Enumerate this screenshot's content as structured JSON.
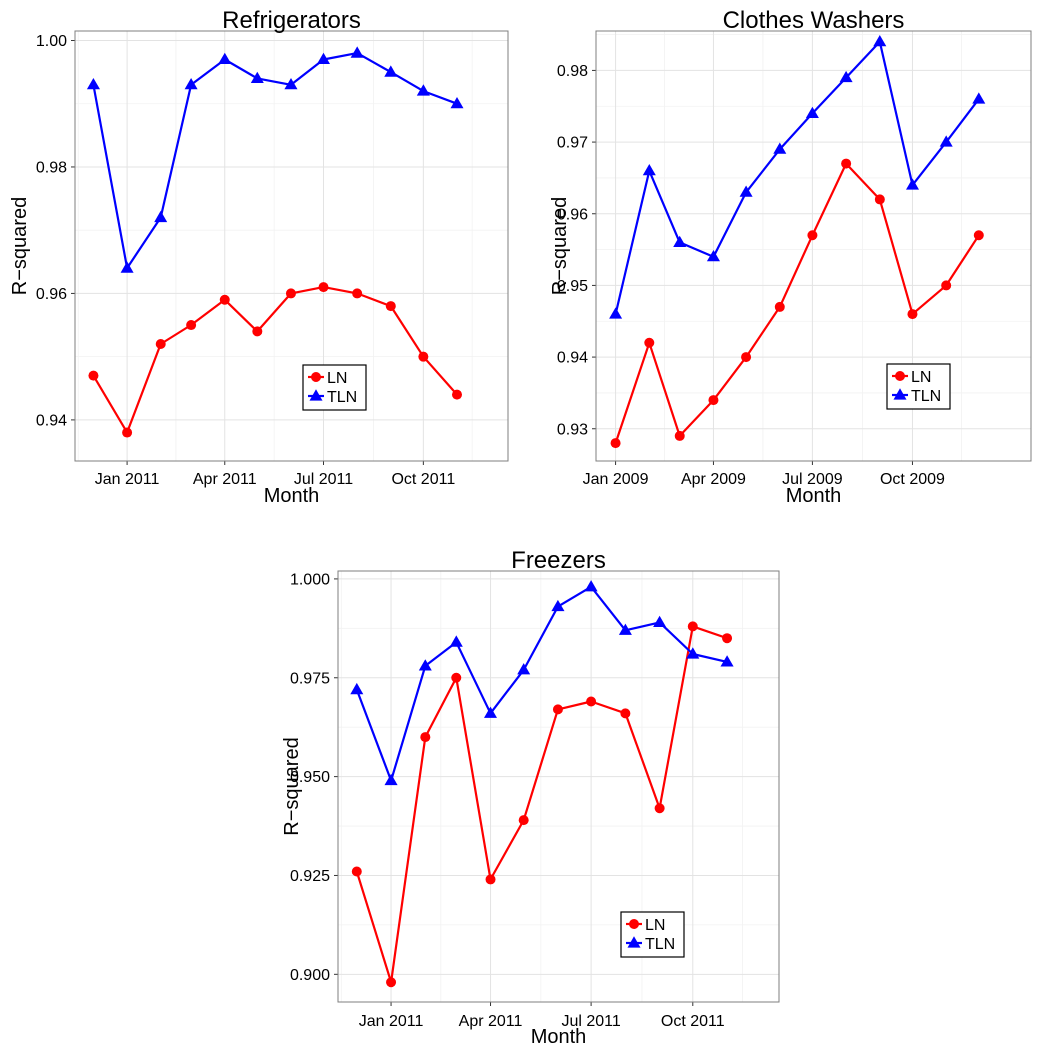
{
  "colors": {
    "LN": "#ff0000",
    "TLN": "#0000ff"
  },
  "chart_data": [
    {
      "type": "line",
      "title": "Refrigerators",
      "xlabel": "Month",
      "ylabel": "R−squared",
      "x": [
        "2010-12",
        "2011-01",
        "2011-02",
        "2011-03",
        "2011-04",
        "2011-05",
        "2011-06",
        "2011-07",
        "2011-08",
        "2011-09",
        "2011-10",
        "2011-11"
      ],
      "xlim": [
        "2010-11-14",
        "2011-12-18"
      ],
      "ylim": [
        0.9335,
        1.0015
      ],
      "xticks": [
        {
          "value": "2011-01",
          "label": "Jan 2011"
        },
        {
          "value": "2011-04",
          "label": "Apr 2011"
        },
        {
          "value": "2011-07",
          "label": "Jul 2011"
        },
        {
          "value": "2011-10",
          "label": "Oct 2011"
        }
      ],
      "yticks": [
        {
          "value": 0.94,
          "label": "0.94"
        },
        {
          "value": 0.96,
          "label": "0.96"
        },
        {
          "value": 0.98,
          "label": "0.98"
        },
        {
          "value": 1.0,
          "label": "1.00"
        }
      ],
      "grid": true,
      "legend_position": "lower-right",
      "series": [
        {
          "name": "LN",
          "marker": "circle",
          "values": [
            0.947,
            0.938,
            0.952,
            0.955,
            0.959,
            0.954,
            0.96,
            0.961,
            0.96,
            0.958,
            0.95,
            0.944
          ]
        },
        {
          "name": "TLN",
          "marker": "triangle",
          "values": [
            0.993,
            0.964,
            0.972,
            0.993,
            0.997,
            0.994,
            0.993,
            0.997,
            0.998,
            0.995,
            0.992,
            0.99
          ]
        }
      ]
    },
    {
      "type": "line",
      "title": "Clothes Washers",
      "xlabel": "Month",
      "ylabel": "R−squared",
      "x": [
        "2009-01",
        "2009-02",
        "2009-03",
        "2009-04",
        "2009-05",
        "2009-06",
        "2009-07",
        "2009-08",
        "2009-09",
        "2009-10",
        "2009-11",
        "2009-12"
      ],
      "xlim": [
        "2008-12-14",
        "2010-01-18"
      ],
      "ylim": [
        0.9255,
        0.9855
      ],
      "xticks": [
        {
          "value": "2009-01",
          "label": "Jan 2009"
        },
        {
          "value": "2009-04",
          "label": "Apr 2009"
        },
        {
          "value": "2009-07",
          "label": "Jul 2009"
        },
        {
          "value": "2009-10",
          "label": "Oct 2009"
        }
      ],
      "yticks": [
        {
          "value": 0.93,
          "label": "0.93"
        },
        {
          "value": 0.94,
          "label": "0.94"
        },
        {
          "value": 0.95,
          "label": "0.95"
        },
        {
          "value": 0.96,
          "label": "0.96"
        },
        {
          "value": 0.97,
          "label": "0.97"
        },
        {
          "value": 0.98,
          "label": "0.98"
        }
      ],
      "grid": true,
      "legend_position": "lower-right",
      "series": [
        {
          "name": "LN",
          "marker": "circle",
          "values": [
            0.928,
            0.942,
            0.929,
            0.934,
            0.94,
            0.947,
            0.957,
            0.967,
            0.962,
            0.946,
            0.95,
            0.957
          ]
        },
        {
          "name": "TLN",
          "marker": "triangle",
          "values": [
            0.946,
            0.966,
            0.956,
            0.954,
            0.963,
            0.969,
            0.974,
            0.979,
            0.984,
            0.964,
            0.97,
            0.976
          ]
        }
      ]
    },
    {
      "type": "line",
      "title": "Freezers",
      "xlabel": "Month",
      "ylabel": "R−squared",
      "x": [
        "2010-12",
        "2011-01",
        "2011-02",
        "2011-03",
        "2011-04",
        "2011-05",
        "2011-06",
        "2011-07",
        "2011-08",
        "2011-09",
        "2011-10",
        "2011-11"
      ],
      "xlim": [
        "2010-11-14",
        "2011-12-18"
      ],
      "ylim": [
        0.893,
        1.002
      ],
      "xticks": [
        {
          "value": "2011-01",
          "label": "Jan 2011"
        },
        {
          "value": "2011-04",
          "label": "Apr 2011"
        },
        {
          "value": "2011-07",
          "label": "Jul 2011"
        },
        {
          "value": "2011-10",
          "label": "Oct 2011"
        }
      ],
      "yticks": [
        {
          "value": 0.9,
          "label": "0.900"
        },
        {
          "value": 0.925,
          "label": "0.925"
        },
        {
          "value": 0.95,
          "label": "0.950"
        },
        {
          "value": 0.975,
          "label": "0.975"
        },
        {
          "value": 1.0,
          "label": "1.000"
        }
      ],
      "grid": true,
      "legend_position": "lower-right",
      "series": [
        {
          "name": "LN",
          "marker": "circle",
          "values": [
            0.926,
            0.898,
            0.96,
            0.975,
            0.924,
            0.939,
            0.967,
            0.969,
            0.966,
            0.942,
            0.988,
            0.985
          ]
        },
        {
          "name": "TLN",
          "marker": "triangle",
          "values": [
            0.972,
            0.949,
            0.978,
            0.984,
            0.966,
            0.977,
            0.993,
            0.998,
            0.987,
            0.989,
            0.981,
            0.979
          ]
        }
      ]
    }
  ]
}
